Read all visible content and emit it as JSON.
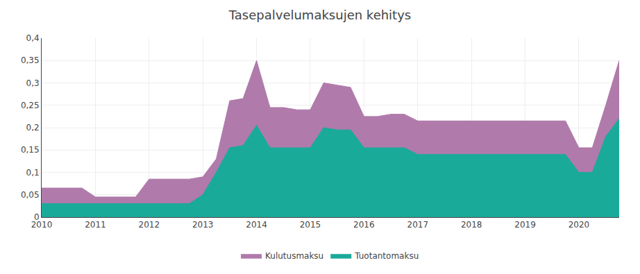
{
  "chart_data": {
    "type": "area",
    "title": "Tasepalvelumaksujen kehitys",
    "x": [
      2010.0,
      2010.25,
      2010.5,
      2010.75,
      2011.0,
      2011.25,
      2011.5,
      2011.75,
      2012.0,
      2012.25,
      2012.5,
      2012.75,
      2013.0,
      2013.25,
      2013.5,
      2013.75,
      2014.0,
      2014.25,
      2014.5,
      2014.75,
      2015.0,
      2015.25,
      2015.5,
      2015.75,
      2016.0,
      2016.25,
      2016.5,
      2016.75,
      2017.0,
      2017.25,
      2017.5,
      2017.75,
      2018.0,
      2018.25,
      2018.5,
      2018.75,
      2019.0,
      2019.25,
      2019.5,
      2019.75,
      2020.0,
      2020.25,
      2020.5,
      2020.75
    ],
    "series": [
      {
        "name": "Kulutusmaksu",
        "color": "#b07aab",
        "values": [
          0.065,
          0.065,
          0.065,
          0.065,
          0.045,
          0.045,
          0.045,
          0.045,
          0.085,
          0.085,
          0.085,
          0.085,
          0.09,
          0.13,
          0.26,
          0.265,
          0.35,
          0.245,
          0.245,
          0.24,
          0.24,
          0.3,
          0.295,
          0.29,
          0.225,
          0.225,
          0.23,
          0.23,
          0.215,
          0.215,
          0.215,
          0.215,
          0.215,
          0.215,
          0.215,
          0.215,
          0.215,
          0.215,
          0.215,
          0.215,
          0.155,
          0.155,
          0.25,
          0.35
        ]
      },
      {
        "name": "Tuotantomaksu",
        "color": "#1aaa9a",
        "values": [
          0.03,
          0.03,
          0.03,
          0.03,
          0.03,
          0.03,
          0.03,
          0.03,
          0.03,
          0.03,
          0.03,
          0.03,
          0.05,
          0.1,
          0.155,
          0.16,
          0.205,
          0.155,
          0.155,
          0.155,
          0.155,
          0.2,
          0.195,
          0.195,
          0.155,
          0.155,
          0.155,
          0.155,
          0.14,
          0.14,
          0.14,
          0.14,
          0.14,
          0.14,
          0.14,
          0.14,
          0.14,
          0.14,
          0.14,
          0.14,
          0.1,
          0.1,
          0.18,
          0.22
        ]
      }
    ],
    "xlim": [
      2010,
      2020.75
    ],
    "xticks": [
      2010,
      2011,
      2012,
      2013,
      2014,
      2015,
      2016,
      2017,
      2018,
      2019,
      2020
    ],
    "ylim": [
      0,
      0.4
    ],
    "yticks": [
      0,
      {
        "value": 0.05,
        "label": "0,05"
      },
      {
        "value": 0.1,
        "label": "0,1"
      },
      {
        "value": 0.15,
        "label": "0,15"
      },
      {
        "value": 0.2,
        "label": "0,2"
      },
      {
        "value": 0.25,
        "label": "0,25"
      },
      {
        "value": 0.3,
        "label": "0,3"
      },
      {
        "value": 0.35,
        "label": "0,35"
      },
      {
        "value": 0.4,
        "label": "0,4"
      }
    ],
    "grid": true,
    "legend": "bottom"
  }
}
